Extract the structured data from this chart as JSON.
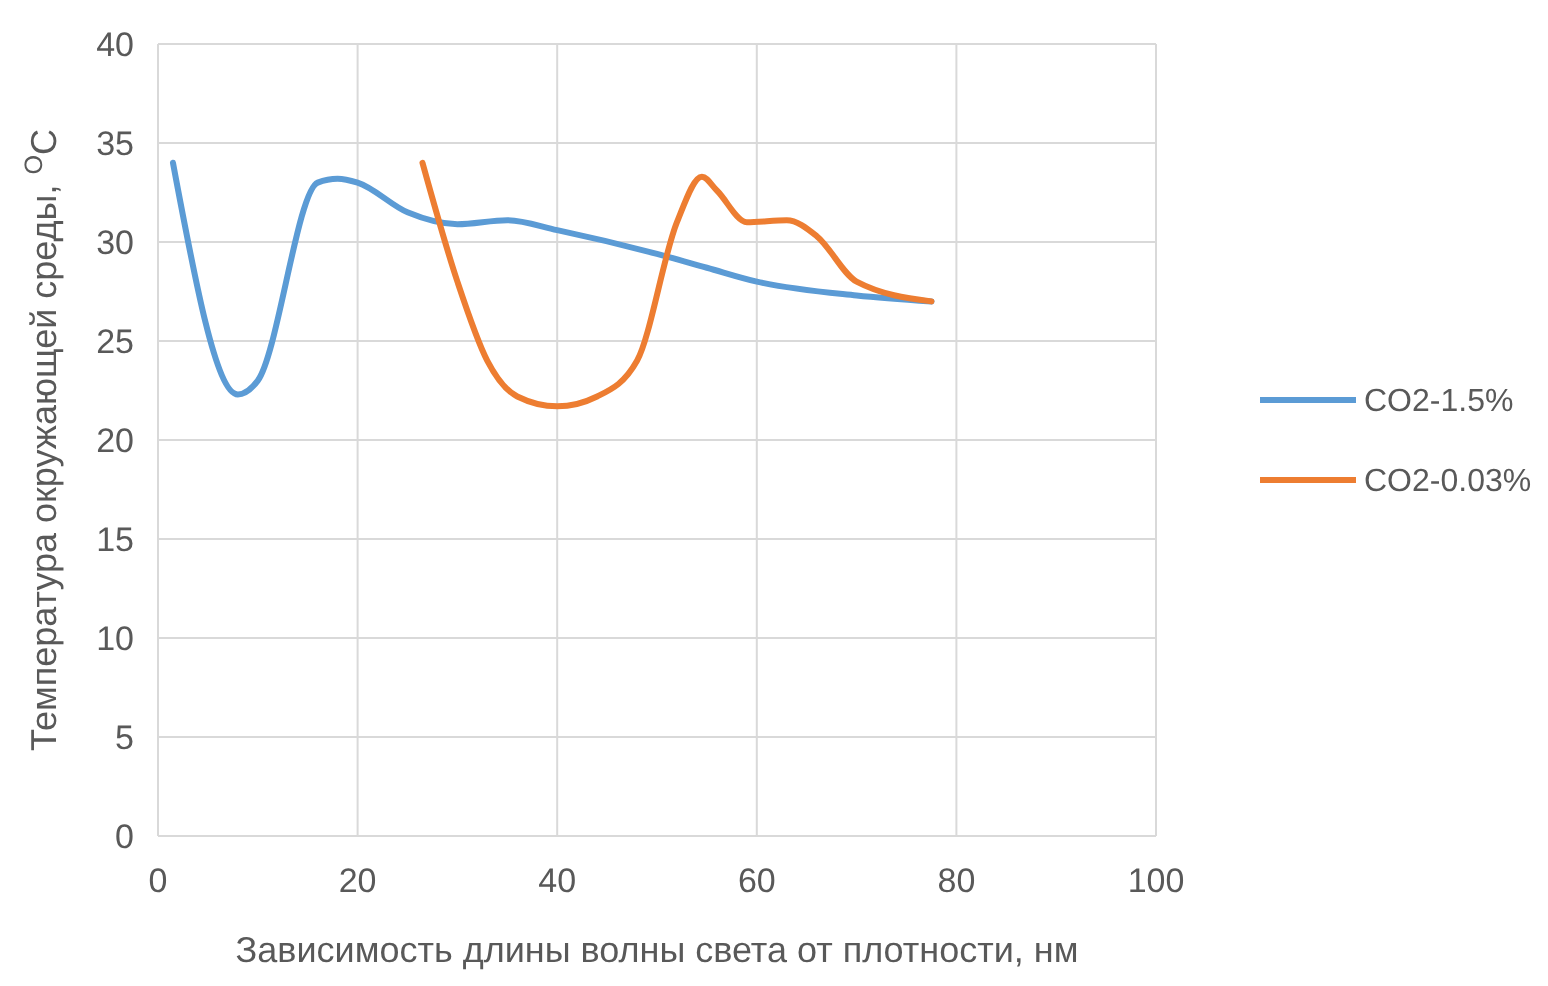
{
  "chart_data": {
    "type": "line",
    "xlabel": "Зависимость длины волны света от плотности, нм",
    "ylabel": "Температура окружающей среды, $^{O}$C",
    "xlim": [
      0,
      100
    ],
    "xticks": [
      0,
      20,
      40,
      60,
      80,
      100
    ],
    "ylim": [
      0,
      40
    ],
    "yticks": [
      0,
      5,
      10,
      15,
      20,
      25,
      30,
      35,
      40
    ],
    "grid": true,
    "legend": "right",
    "series": [
      {
        "name": "CO2-1.5%",
        "color": "#5b9bd5",
        "x": [
          1.5,
          8,
          10,
          16,
          18,
          20,
          25,
          30,
          35,
          40,
          50,
          55,
          60,
          70,
          77.5
        ],
        "values": [
          34,
          22.3,
          23,
          33,
          33.2,
          33,
          31.5,
          30.9,
          31.1,
          30.6,
          29.4,
          28.7,
          28,
          27.3,
          27
        ]
      },
      {
        "name": "CO2-0.03%",
        "color": "#ed7d31",
        "x": [
          26.5,
          30,
          33,
          36,
          40,
          44,
          48,
          52,
          54.5,
          56,
          59,
          63,
          66,
          70,
          77.5
        ],
        "values": [
          34,
          28,
          24,
          22.2,
          21.7,
          22.2,
          24,
          31,
          33.3,
          32.6,
          31,
          31.1,
          30.3,
          28,
          27
        ]
      }
    ]
  }
}
